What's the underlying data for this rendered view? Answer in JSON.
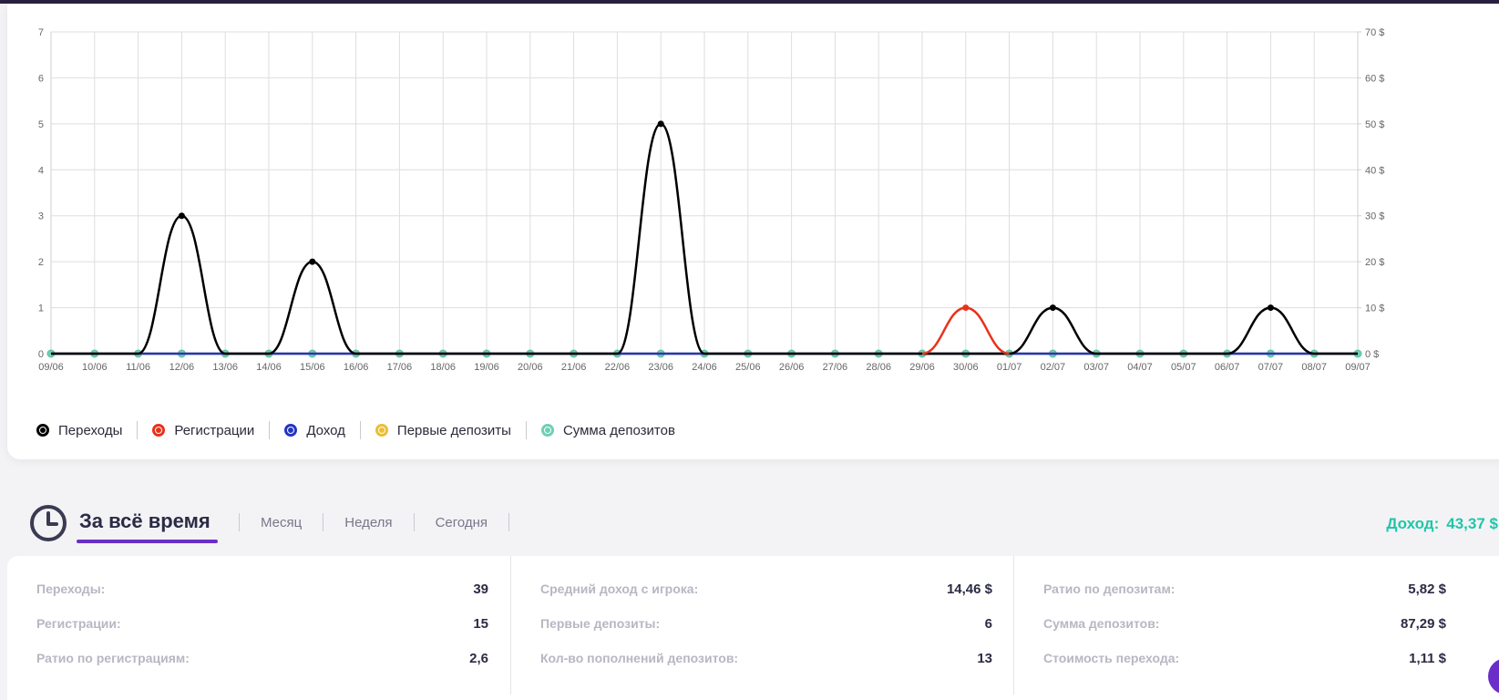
{
  "chart_data": {
    "type": "line",
    "x": [
      "09/06",
      "10/06",
      "11/06",
      "12/06",
      "13/06",
      "14/06",
      "15/06",
      "16/06",
      "17/06",
      "18/06",
      "19/06",
      "20/06",
      "21/06",
      "22/06",
      "23/06",
      "24/06",
      "25/06",
      "26/06",
      "27/06",
      "28/06",
      "29/06",
      "30/06",
      "01/07",
      "02/07",
      "03/07",
      "04/07",
      "05/07",
      "06/07",
      "07/07",
      "08/07",
      "09/07"
    ],
    "ylim": [
      0,
      7
    ],
    "y_ticks": [
      "0",
      "1",
      "2",
      "3",
      "4",
      "5",
      "6",
      "7"
    ],
    "y2lim": [
      0,
      70
    ],
    "y2_ticks": [
      "0 $",
      "10 $",
      "20 $",
      "30 $",
      "40 $",
      "50 $",
      "60 $",
      "70 $"
    ],
    "grid": true,
    "legend_position": "bottom-left",
    "series": [
      {
        "name": "Переходы",
        "color": "#000000",
        "axis": "left",
        "values": [
          0,
          0,
          0,
          3,
          0,
          0,
          2,
          0,
          0,
          0,
          0,
          0,
          0,
          0,
          5,
          0,
          0,
          0,
          0,
          0,
          0,
          0,
          0,
          1,
          0,
          0,
          0,
          0,
          1,
          0,
          0
        ]
      },
      {
        "name": "Регистрации",
        "color": "#e8321c",
        "axis": "left",
        "values": [
          0,
          0,
          0,
          0,
          0,
          0,
          0,
          0,
          0,
          0,
          0,
          0,
          0,
          0,
          0,
          0,
          0,
          0,
          0,
          0,
          0,
          1,
          0,
          0,
          0,
          0,
          0,
          0,
          0,
          0,
          0
        ]
      },
      {
        "name": "Доход",
        "color": "#2435c4",
        "axis": "right",
        "values": [
          0,
          0,
          0,
          0,
          0,
          0,
          0,
          0,
          0,
          0,
          0,
          0,
          0,
          0,
          0,
          0,
          0,
          0,
          0,
          0,
          0,
          0,
          0,
          0,
          0,
          0,
          0,
          0,
          0,
          0,
          0
        ]
      },
      {
        "name": "Первые депозиты",
        "color": "#ecbd35",
        "axis": "left",
        "values": [
          0,
          0,
          0,
          0,
          0,
          0,
          0,
          0,
          0,
          0,
          0,
          0,
          0,
          0,
          0,
          0,
          0,
          0,
          0,
          0,
          0,
          0,
          0,
          0,
          0,
          0,
          0,
          0,
          0,
          0,
          0
        ]
      },
      {
        "name": "Сумма депозитов",
        "color": "#6fcfb4",
        "axis": "right",
        "values": [
          0,
          0,
          0,
          0,
          0,
          0,
          0,
          0,
          0,
          0,
          0,
          0,
          0,
          0,
          0,
          0,
          0,
          0,
          0,
          0,
          0,
          0,
          0,
          0,
          0,
          0,
          0,
          0,
          0,
          0,
          0
        ]
      }
    ]
  },
  "period": {
    "active": "За всё время",
    "tabs": [
      "Месяц",
      "Неделя",
      "Сегодня"
    ]
  },
  "income": {
    "label": "Доход:",
    "value": "43,37 $"
  },
  "stats": [
    [
      {
        "label": "Переходы:",
        "value": "39"
      },
      {
        "label": "Регистрации:",
        "value": "15"
      },
      {
        "label": "Ратио по регистрациям:",
        "value": "2,6"
      }
    ],
    [
      {
        "label": "Средний доход с игрока:",
        "value": "14,46 $"
      },
      {
        "label": "Первые депозиты:",
        "value": "6"
      },
      {
        "label": "Кол-во пополнений депозитов:",
        "value": "13"
      }
    ],
    [
      {
        "label": "Ратио по депозитам:",
        "value": "5,82 $"
      },
      {
        "label": "Сумма депозитов:",
        "value": "87,29 $"
      },
      {
        "label": "Стоимость перехода:",
        "value": "1,11 $"
      }
    ]
  ]
}
